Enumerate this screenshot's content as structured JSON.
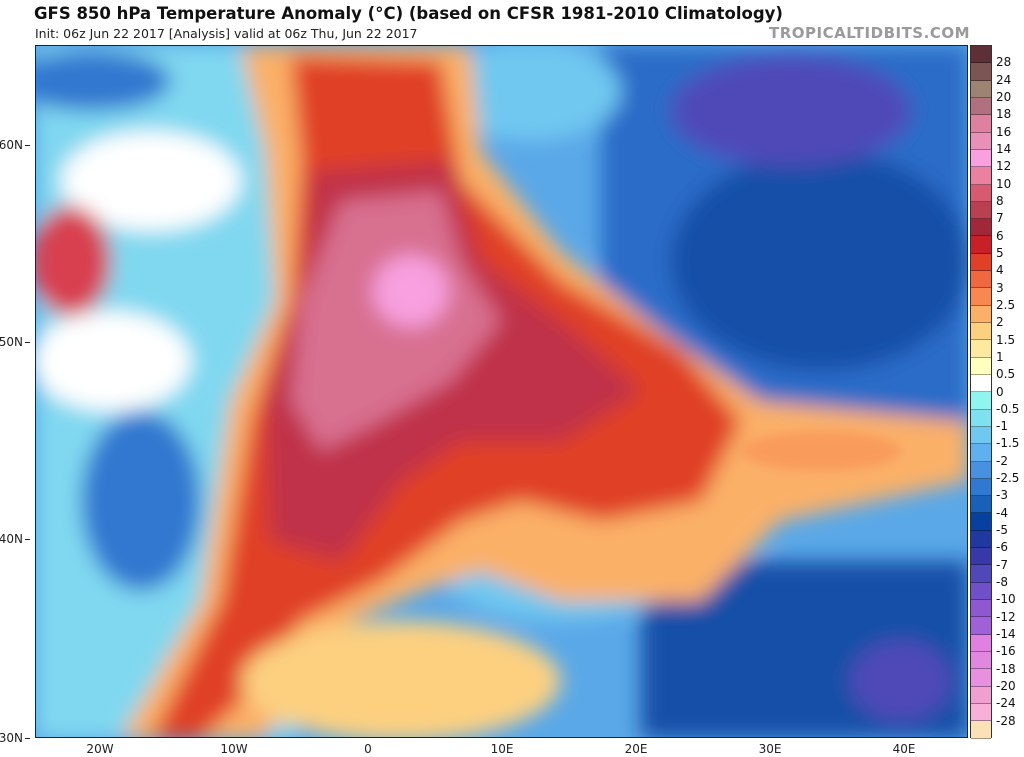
{
  "header": {
    "title": "GFS 850 hPa Temperature Anomaly (°C) (based on CFSR 1981-2010 Climatology)",
    "subtitle": "Init: 06z Jun 22 2017   [Analysis]   valid at 06z Thu, Jun 22 2017",
    "watermark": "TROPICALTIDBITS.COM"
  },
  "axes": {
    "latitudes": [
      "60N",
      "50N",
      "40N",
      "30N"
    ],
    "longitudes": [
      "20W",
      "10W",
      "0",
      "10E",
      "20E",
      "30E",
      "40E"
    ]
  },
  "colorbar": {
    "labels": [
      "28",
      "24",
      "20",
      "18",
      "16",
      "14",
      "12",
      "10",
      "8",
      "7",
      "6",
      "5",
      "4",
      "3",
      "2.5",
      "2",
      "1.5",
      "1",
      "0.5",
      "0",
      "-0.5",
      "-1",
      "-1.5",
      "-2",
      "-2.5",
      "-3",
      "-4",
      "-5",
      "-6",
      "-7",
      "-8",
      "-10",
      "-12",
      "-14",
      "-16",
      "-18",
      "-20",
      "-24",
      "-28"
    ],
    "colors": [
      "#5e2f36",
      "#7a5552",
      "#9c8372",
      "#b07080",
      "#e080a0",
      "#e890b8",
      "#f8a0e0",
      "#ec80a0",
      "#d85a70",
      "#b84050",
      "#a02838",
      "#c82028",
      "#e04028",
      "#f06840",
      "#f88850",
      "#fbb068",
      "#fdd080",
      "#ffe8a0",
      "#ffffc0",
      "#ffffff",
      "#90f4f0",
      "#80e0f0",
      "#70c8f0",
      "#60b0f0",
      "#4890e0",
      "#3078d0",
      "#1860b8",
      "#0840a0",
      "#2038a0",
      "#3838a8",
      "#5048b8",
      "#7050c8",
      "#9058d0",
      "#a060d8",
      "#e080e0",
      "#e088e0",
      "#e890e0",
      "#f0a0d0",
      "#f8b0d8",
      "#fce0b8"
    ]
  }
}
